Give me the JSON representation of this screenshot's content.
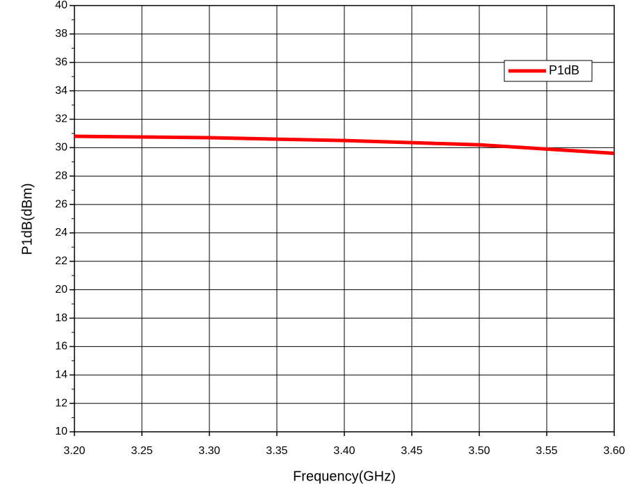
{
  "chart_data": {
    "type": "line",
    "x_label": "Frequency(GHz)",
    "y_label": "P1dB(dBm)",
    "x": [
      3.2,
      3.25,
      3.3,
      3.35,
      3.4,
      3.45,
      3.5,
      3.55,
      3.6
    ],
    "series": [
      {
        "name": "P1dB",
        "color": "#ff0000",
        "values": [
          30.8,
          30.75,
          30.7,
          30.6,
          30.5,
          30.35,
          30.2,
          29.9,
          29.6
        ]
      }
    ],
    "xlim": [
      3.2,
      3.6
    ],
    "xticks": [
      {
        "value": 3.2,
        "label": "3.20"
      },
      3.25,
      {
        "value": 3.3,
        "label": "3.30"
      },
      3.35,
      {
        "value": 3.4,
        "label": "3.40"
      },
      3.45,
      {
        "value": 3.5,
        "label": "3.50"
      },
      3.55,
      {
        "value": 3.6,
        "label": "3.60"
      }
    ],
    "ylim": [
      10,
      40
    ],
    "yticks": [
      10,
      12,
      14,
      16,
      18,
      20,
      22,
      24,
      26,
      28,
      30,
      32,
      34,
      36,
      38,
      40
    ],
    "yminorticks": [
      11,
      13,
      15,
      17,
      19,
      21,
      23,
      25,
      27,
      29,
      31,
      33,
      35,
      37,
      39
    ],
    "grid": true,
    "legend_position": "upper right"
  }
}
